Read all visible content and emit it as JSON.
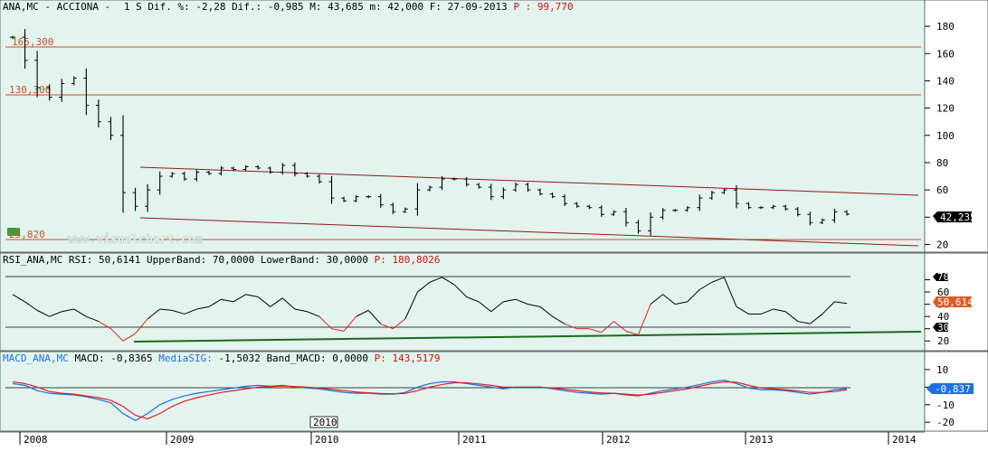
{
  "main": {
    "header": {
      "symbol": "ANA,MC - ACCIONA -",
      "period": "1 S",
      "dif_pct_label": "Dif. %:",
      "dif_pct": "-2,28",
      "dif_label": "Dif.:",
      "dif": "-0,985",
      "max_label": "M:",
      "max": "43,685",
      "min_label": "m:",
      "min": "42,000",
      "date_label": "F:",
      "date": "27-09-2013",
      "p_label": "P :",
      "p_value": "99,770"
    },
    "hlines": [
      {
        "label": "165,300",
        "value": 165.3
      },
      {
        "label": "130,300",
        "value": 130.3
      },
      {
        "label": "25,820",
        "value": 25.82
      }
    ],
    "last_value": "42,235",
    "watermark": "www.visualchart.com"
  },
  "rsi": {
    "header": {
      "title": "RSI_ANA,MC",
      "rsi_label": "RSI:",
      "rsi": "50,6141",
      "upper_label": "UpperBand:",
      "upper": "70,0000",
      "lower_label": "LowerBand:",
      "lower": "30,0000",
      "p_label": "P:",
      "p_value": "180,8026"
    },
    "upper_tag": "70",
    "lower_tag": "30",
    "last_value": "50,614"
  },
  "macd": {
    "header": {
      "title": "MACD_ANA,MC",
      "macd_label": "MACD:",
      "macd": "-0,8365",
      "sig_label": "MediaSIG:",
      "sig": "-1,5032",
      "band_label": "Band_MACD:",
      "band": "0,0000",
      "p_label": "P:",
      "p_value": "143,5179"
    },
    "last_value": "-0,837"
  },
  "xaxis": {
    "labels": [
      "2008",
      "2009",
      "2010",
      "2011",
      "2012",
      "2013",
      "2014"
    ],
    "cursor_label": "2010"
  },
  "colors": {
    "panel_bg": "#e2f4ed",
    "hline": "#c8502a",
    "channel": "#8b1a1a",
    "rsi_trend": "#1c6b1c",
    "macd": "#1f6fe0",
    "signal": "#e02020",
    "tag_value": "#e05a20"
  },
  "chart_data": [
    {
      "type": "ohlc",
      "title": "ANA,MC - ACCIONA -",
      "ylim": [
        15,
        190
      ],
      "yticks": [
        20,
        40,
        60,
        80,
        100,
        120,
        140,
        160,
        180
      ],
      "x": [
        "2008-01",
        "2008-02",
        "2008-03",
        "2008-04",
        "2008-05",
        "2008-06",
        "2008-07",
        "2008-08",
        "2008-09",
        "2008-10",
        "2008-11",
        "2008-12",
        "2009-01",
        "2009-02",
        "2009-03",
        "2009-04",
        "2009-05",
        "2009-06",
        "2009-07",
        "2009-08",
        "2009-09",
        "2009-10",
        "2009-11",
        "2009-12",
        "2010-01",
        "2010-02",
        "2010-03",
        "2010-04",
        "2010-05",
        "2010-06",
        "2010-07",
        "2010-08",
        "2010-09",
        "2010-10",
        "2010-11",
        "2010-12",
        "2011-01",
        "2011-02",
        "2011-03",
        "2011-04",
        "2011-05",
        "2011-06",
        "2011-07",
        "2011-08",
        "2011-09",
        "2011-10",
        "2011-11",
        "2011-12",
        "2012-01",
        "2012-02",
        "2012-03",
        "2012-04",
        "2012-05",
        "2012-06",
        "2012-07",
        "2012-08",
        "2012-09",
        "2012-10",
        "2012-11",
        "2012-12",
        "2013-01",
        "2013-02",
        "2013-03",
        "2013-04",
        "2013-05",
        "2013-06",
        "2013-07",
        "2013-08",
        "2013-09"
      ],
      "close": [
        172,
        155,
        135,
        128,
        138,
        142,
        122,
        110,
        100,
        58,
        48,
        60,
        70,
        72,
        68,
        73,
        72,
        76,
        75,
        77,
        76,
        73,
        78,
        72,
        70,
        66,
        54,
        52,
        55,
        55,
        49,
        44,
        46,
        60,
        62,
        68,
        68,
        64,
        62,
        55,
        60,
        64,
        60,
        57,
        55,
        50,
        48,
        47,
        42,
        44,
        36,
        30,
        40,
        45,
        45,
        47,
        54,
        58,
        60,
        50,
        47,
        47,
        48,
        46,
        42,
        36,
        38,
        44,
        42.235
      ]
    },
    {
      "type": "line",
      "title": "RSI_ANA,MC",
      "ylim": [
        15,
        80
      ],
      "yticks": [
        20,
        30,
        40,
        50,
        60,
        70
      ],
      "upper_band": 70,
      "lower_band": 30,
      "values": [
        58,
        52,
        45,
        40,
        44,
        46,
        40,
        36,
        30,
        20,
        26,
        38,
        46,
        45,
        42,
        46,
        48,
        54,
        52,
        58,
        56,
        48,
        55,
        46,
        44,
        40,
        30,
        28,
        40,
        45,
        34,
        30,
        38,
        60,
        68,
        72,
        66,
        56,
        52,
        44,
        52,
        54,
        50,
        48,
        40,
        34,
        30,
        30,
        27,
        36,
        28,
        25,
        50,
        58,
        50,
        52,
        62,
        68,
        72,
        48,
        42,
        42,
        46,
        44,
        36,
        34,
        42,
        52,
        50.614
      ]
    },
    {
      "type": "line",
      "title": "MACD_ANA,MC",
      "ylim": [
        -24,
        12
      ],
      "yticks": [
        10,
        0,
        -10,
        -20
      ],
      "series": [
        {
          "name": "MACD",
          "values": [
            2,
            1,
            -2,
            -3.5,
            -4,
            -4.5,
            -5.5,
            -7,
            -9,
            -15,
            -19,
            -15,
            -10,
            -7,
            -5,
            -3.5,
            -2.5,
            -1.5,
            -0.5,
            0.5,
            1,
            0.5,
            1,
            0,
            -0.5,
            -1,
            -2,
            -3,
            -3.5,
            -3.5,
            -4,
            -4,
            -3,
            0,
            2,
            3,
            3,
            2,
            1,
            0,
            -1,
            0,
            0,
            0,
            -1,
            -2,
            -3,
            -3.5,
            -4,
            -3.5,
            -4.5,
            -5,
            -3.5,
            -2,
            -1,
            0,
            1.5,
            3,
            4,
            2,
            -0.5,
            -1.5,
            -1.5,
            -2,
            -3,
            -4,
            -3,
            -1.5,
            -0.8365
          ]
        },
        {
          "name": "MediaSIG",
          "values": [
            3,
            2,
            0,
            -2.5,
            -3.5,
            -4,
            -5,
            -6,
            -7.5,
            -11,
            -16,
            -18,
            -15,
            -11,
            -8,
            -6,
            -4.5,
            -3,
            -2,
            -1,
            0,
            0.3,
            0.6,
            0.4,
            0,
            -0.5,
            -1.2,
            -2,
            -2.8,
            -3.2,
            -3.6,
            -3.8,
            -3.6,
            -2,
            0,
            1.5,
            2.5,
            2.5,
            1.8,
            1,
            0,
            0,
            0,
            0,
            -0.5,
            -1.2,
            -2,
            -2.8,
            -3.3,
            -3.5,
            -4,
            -4.5,
            -4,
            -3,
            -2,
            -1,
            0.5,
            2,
            3,
            2.8,
            1,
            -0.5,
            -1,
            -1.5,
            -2.2,
            -3,
            -3,
            -2.5,
            -1.5032
          ]
        }
      ]
    }
  ]
}
